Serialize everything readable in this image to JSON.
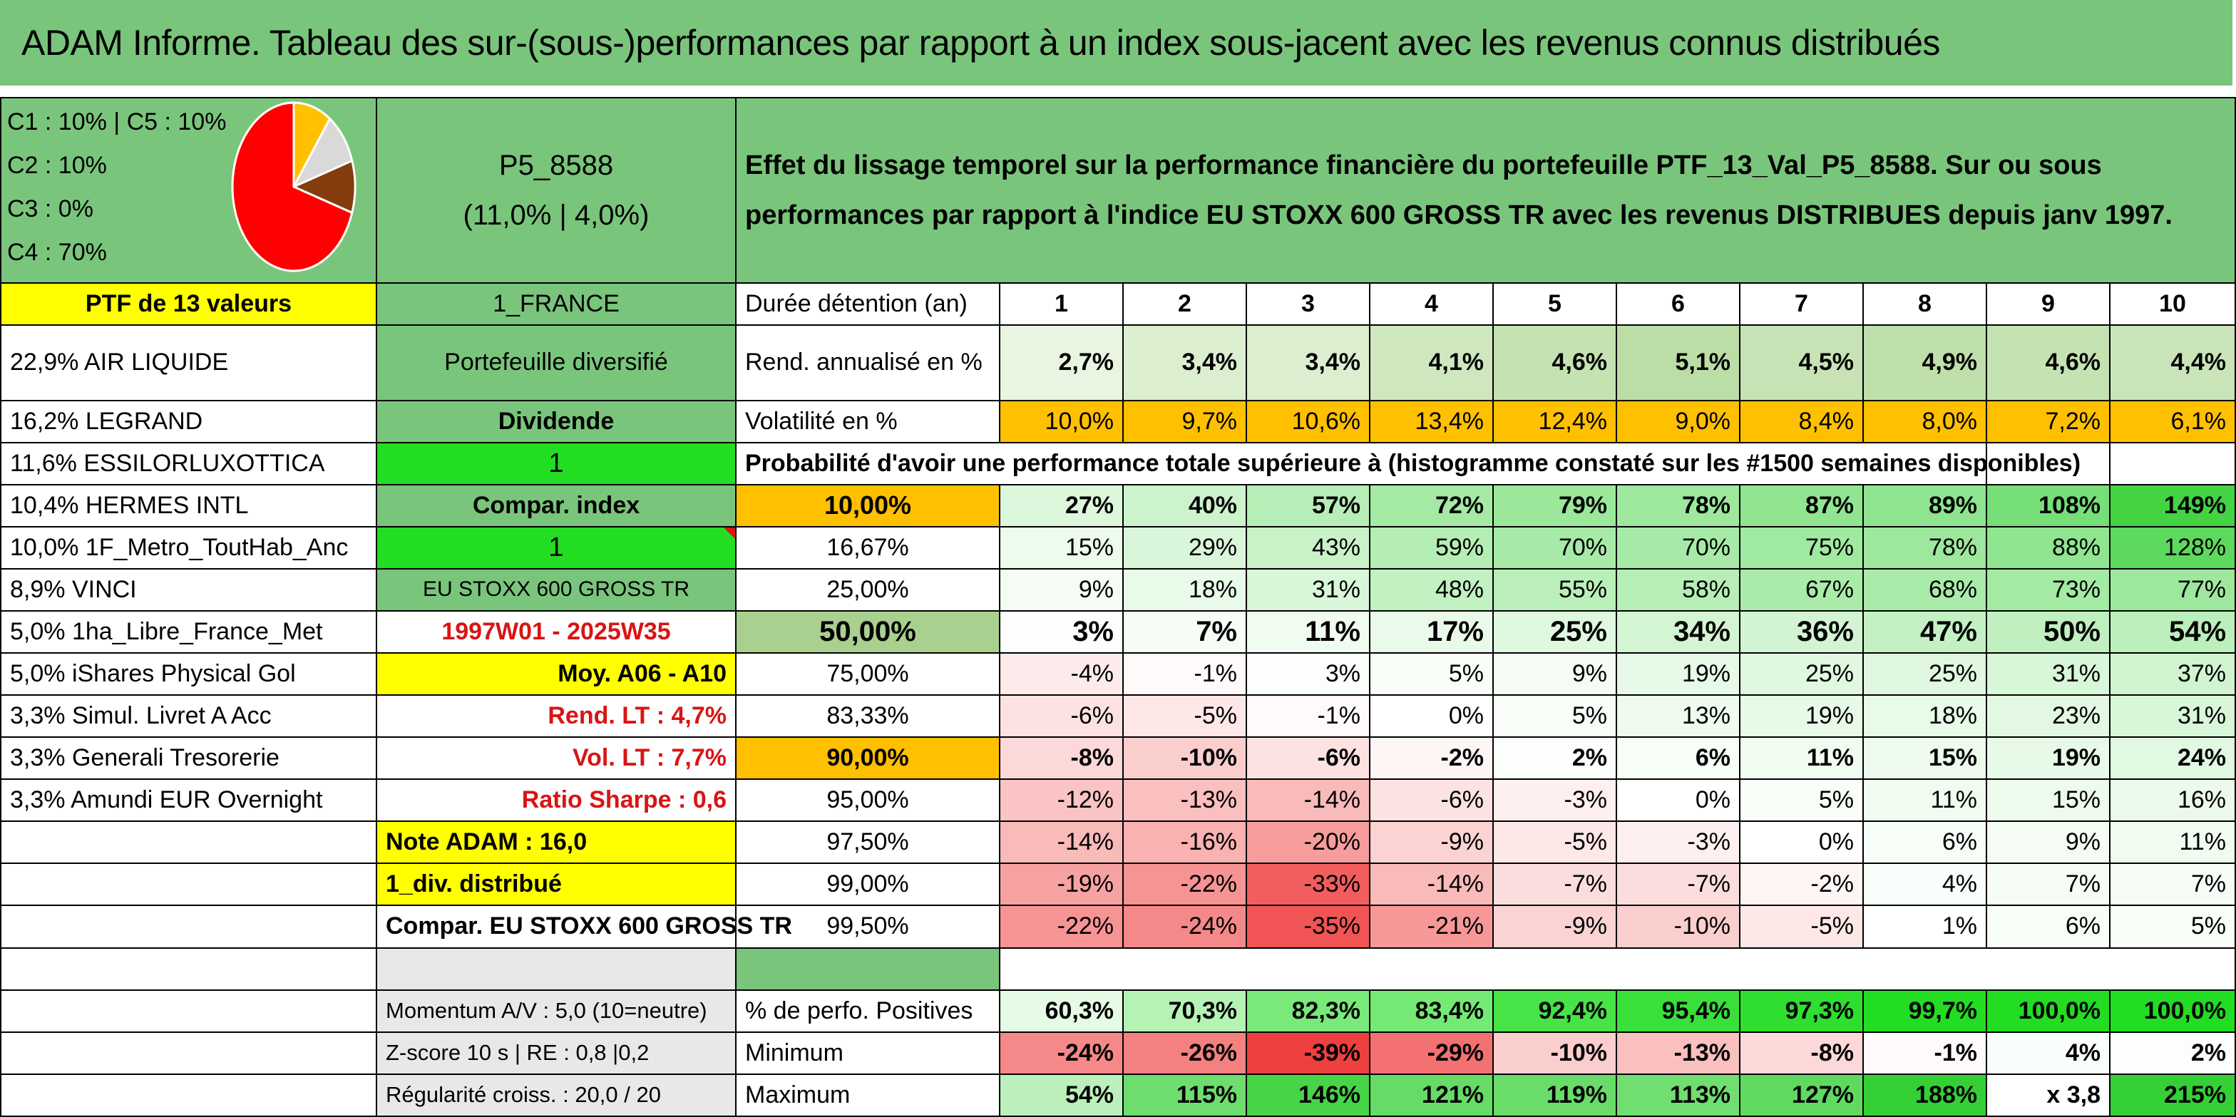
{
  "title": "ADAM Informe. Tableau des sur-(sous-)performances par rapport à un index sous-jacent avec les revenus connus distribués",
  "header": {
    "legend": [
      "C1 : 10% | C5 : 10%",
      "C2 : 10%",
      "C3 : 0%",
      "C4 : 70%"
    ],
    "pie": {
      "C1": 10,
      "C2": 10,
      "C3": 0,
      "C4": 70,
      "C5": 10
    },
    "pie_colors": {
      "C1": "#ffc000",
      "C2": "#d9d9d9",
      "C3": "#00b050",
      "C4": "#ff0000",
      "C5": "#843c0c"
    },
    "code": "P5_8588",
    "code_sub": "(11,0% | 4,0%)",
    "description": "Effet du lissage temporel sur la performance financière du portefeuille PTF_13_Val_P5_8588. Sur ou sous performances par rapport à l'indice EU STOXX 600 GROSS TR avec les revenus DISTRIBUES depuis janv 1997."
  },
  "left": {
    "ptf_label": "PTF de 13 valeurs",
    "holdings": [
      "22,9% AIR LIQUIDE",
      "16,2% LEGRAND",
      "11,6% ESSILORLUXOTTICA",
      "10,4% HERMES INTL",
      "10,0% 1F_Metro_ToutHab_Anc",
      "8,9% VINCI",
      "5,0% 1ha_Libre_France_Met",
      "5,0% iShares Physical Gol",
      "3,3% Simul. Livret A Acc",
      "3,3% Generali Tresorerie",
      "3,3% Amundi EUR Overnight"
    ]
  },
  "mid": {
    "country": "1_FRANCE",
    "type": "Portefeuille diversifié",
    "dividende": "Dividende",
    "div_val": "1",
    "compar_index": "Compar. index",
    "compar_val": "1",
    "index_name": "EU STOXX 600 GROSS TR",
    "period": "1997W01 - 2025W35",
    "moy": "Moy. A06 - A10",
    "rend_lt": "Rend. LT : 4,7%",
    "vol_lt": "Vol. LT : 7,7%",
    "sharpe": "Ratio Sharpe : 0,6",
    "note": "Note ADAM : 16,0",
    "div_distrib": "1_div. distribué",
    "compar_stoxx": "Compar. EU STOXX 600 GROSS TR",
    "momentum": "Momentum A/V : 5,0 (10=neutre)",
    "zscore": "Z-score 10 s | RE : 0,8 |0,2",
    "regularite": "Régularité croiss. : 20,0 / 20"
  },
  "table": {
    "duree_label": "Durée détention (an)",
    "years": [
      "1",
      "2",
      "3",
      "4",
      "5",
      "6",
      "7",
      "8",
      "9",
      "10"
    ],
    "rend_label": "Rend. annualisé en %",
    "rend": [
      "2,7%",
      "3,4%",
      "3,4%",
      "4,1%",
      "4,6%",
      "5,1%",
      "4,5%",
      "4,9%",
      "4,6%",
      "4,4%"
    ],
    "vol_label": "Volatilité en %",
    "vol": [
      "10,0%",
      "9,7%",
      "10,6%",
      "13,4%",
      "12,4%",
      "9,0%",
      "8,4%",
      "8,0%",
      "7,2%",
      "6,1%"
    ],
    "prob_title": "Probabilité d'avoir une performance totale supérieure à (histogramme constaté sur les #1500 semaines disponibles)",
    "quantiles": [
      {
        "q": "10,00%",
        "vals": [
          "27%",
          "40%",
          "57%",
          "72%",
          "79%",
          "78%",
          "87%",
          "89%",
          "108%",
          "149%"
        ]
      },
      {
        "q": "16,67%",
        "vals": [
          "15%",
          "29%",
          "43%",
          "59%",
          "70%",
          "70%",
          "75%",
          "78%",
          "88%",
          "128%"
        ]
      },
      {
        "q": "25,00%",
        "vals": [
          "9%",
          "18%",
          "31%",
          "48%",
          "55%",
          "58%",
          "67%",
          "68%",
          "73%",
          "77%"
        ]
      },
      {
        "q": "50,00%",
        "vals": [
          "3%",
          "7%",
          "11%",
          "17%",
          "25%",
          "34%",
          "36%",
          "47%",
          "50%",
          "54%"
        ]
      },
      {
        "q": "75,00%",
        "vals": [
          "-4%",
          "-1%",
          "3%",
          "5%",
          "9%",
          "19%",
          "25%",
          "25%",
          "31%",
          "37%"
        ]
      },
      {
        "q": "83,33%",
        "vals": [
          "-6%",
          "-5%",
          "-1%",
          "0%",
          "5%",
          "13%",
          "19%",
          "18%",
          "23%",
          "31%"
        ]
      },
      {
        "q": "90,00%",
        "vals": [
          "-8%",
          "-10%",
          "-6%",
          "-2%",
          "2%",
          "6%",
          "11%",
          "15%",
          "19%",
          "24%"
        ]
      },
      {
        "q": "95,00%",
        "vals": [
          "-12%",
          "-13%",
          "-14%",
          "-6%",
          "-3%",
          "0%",
          "5%",
          "11%",
          "15%",
          "16%"
        ]
      },
      {
        "q": "97,50%",
        "vals": [
          "-14%",
          "-16%",
          "-20%",
          "-9%",
          "-5%",
          "-3%",
          "0%",
          "6%",
          "9%",
          "11%"
        ]
      },
      {
        "q": "99,00%",
        "vals": [
          "-19%",
          "-22%",
          "-33%",
          "-14%",
          "-7%",
          "-7%",
          "-2%",
          "4%",
          "7%",
          "7%"
        ]
      },
      {
        "q": "99,50%",
        "vals": [
          "-22%",
          "-24%",
          "-35%",
          "-21%",
          "-9%",
          "-10%",
          "-5%",
          "1%",
          "6%",
          "5%"
        ]
      }
    ],
    "pos_label": "% de perfo. Positives",
    "pos": [
      "60,3%",
      "70,3%",
      "82,3%",
      "83,4%",
      "92,4%",
      "95,4%",
      "97,3%",
      "99,7%",
      "100,0%",
      "100,0%"
    ],
    "min_label": "Minimum",
    "min": [
      "-24%",
      "-26%",
      "-39%",
      "-29%",
      "-10%",
      "-13%",
      "-8%",
      "-1%",
      "4%",
      "2%"
    ],
    "max_label": "Maximum",
    "max": [
      "54%",
      "115%",
      "146%",
      "121%",
      "119%",
      "113%",
      "127%",
      "188%",
      "x 3,8",
      "215%"
    ]
  }
}
